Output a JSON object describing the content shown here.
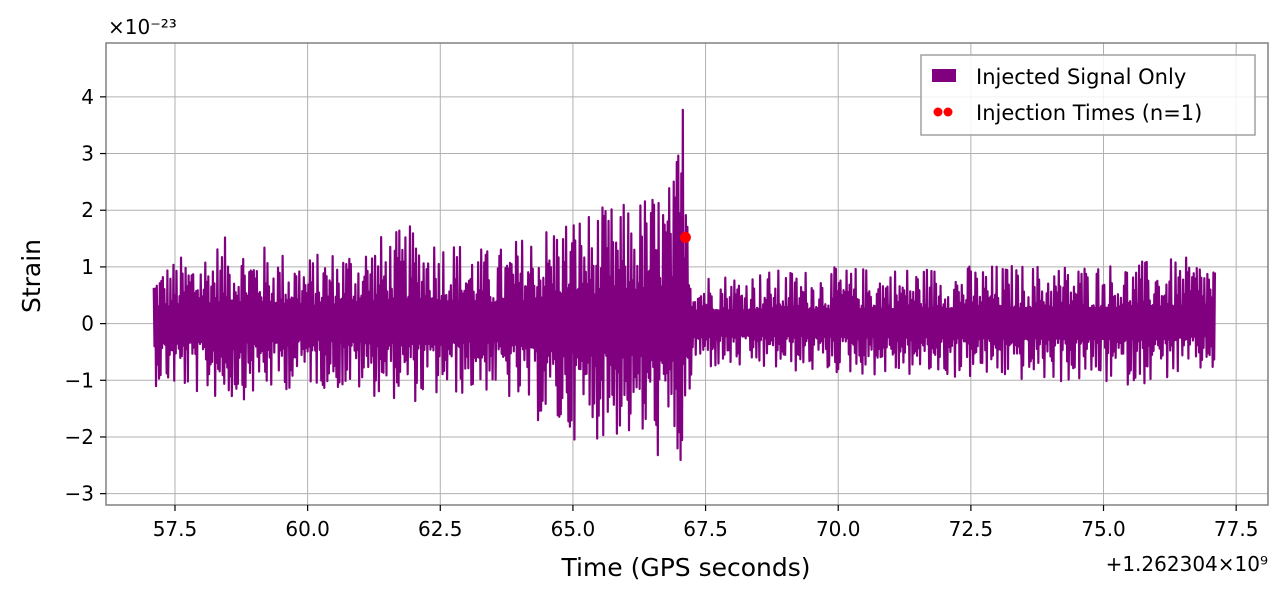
{
  "chart_data": {
    "type": "line",
    "title": "",
    "xlabel": "Time (GPS seconds)",
    "ylabel": "Strain",
    "x_offset_text": "+1.262304×10⁹",
    "y_scale_text": "×10⁻²³",
    "xlim": [
      56.2,
      78.1
    ],
    "ylim": [
      -3.2,
      4.95
    ],
    "x_ticks": [
      57.5,
      60.0,
      62.5,
      65.0,
      67.5,
      70.0,
      72.5,
      75.0,
      77.5
    ],
    "x_tick_labels": [
      "57.5",
      "60.0",
      "62.5",
      "65.0",
      "67.5",
      "70.0",
      "72.5",
      "75.0",
      "77.5"
    ],
    "y_ticks": [
      -3,
      -2,
      -1,
      0,
      1,
      2,
      3,
      4
    ],
    "y_tick_labels": [
      "−3",
      "−2",
      "−1",
      "0",
      "1",
      "2",
      "3",
      "4"
    ],
    "grid": true,
    "legend_position": "top-right",
    "colors": {
      "signal": "#800080",
      "injection": "#ff0000",
      "grid": "#b0b0b0",
      "frame": "#808080"
    },
    "series": [
      {
        "name": "Injected Signal Only",
        "type": "line",
        "x_start": 57.1,
        "x_end": 77.1,
        "envelope": [
          {
            "x": 57.1,
            "max": 1.0,
            "min": -1.1
          },
          {
            "x": 58.5,
            "max": 1.55,
            "min": -1.4
          },
          {
            "x": 60.0,
            "max": 1.2,
            "min": -1.1
          },
          {
            "x": 62.0,
            "max": 1.75,
            "min": -1.4
          },
          {
            "x": 63.5,
            "max": 1.3,
            "min": -1.2
          },
          {
            "x": 64.8,
            "max": 1.95,
            "min": -2.05
          },
          {
            "x": 66.0,
            "max": 2.15,
            "min": -2.05
          },
          {
            "x": 66.9,
            "max": 2.6,
            "min": -2.6
          },
          {
            "x": 67.1,
            "max": 4.6,
            "min": -2.85
          },
          {
            "x": 67.25,
            "max": 0.9,
            "min": -0.8
          },
          {
            "x": 70.0,
            "max": 1.0,
            "min": -0.9
          },
          {
            "x": 75.5,
            "max": 1.1,
            "min": -1.1
          },
          {
            "x": 77.1,
            "max": 1.2,
            "min": -0.85
          }
        ]
      },
      {
        "name": "Injection Times (n=1)",
        "type": "scatter",
        "points": [
          {
            "x": 67.12,
            "y": 1.52
          }
        ]
      }
    ]
  }
}
